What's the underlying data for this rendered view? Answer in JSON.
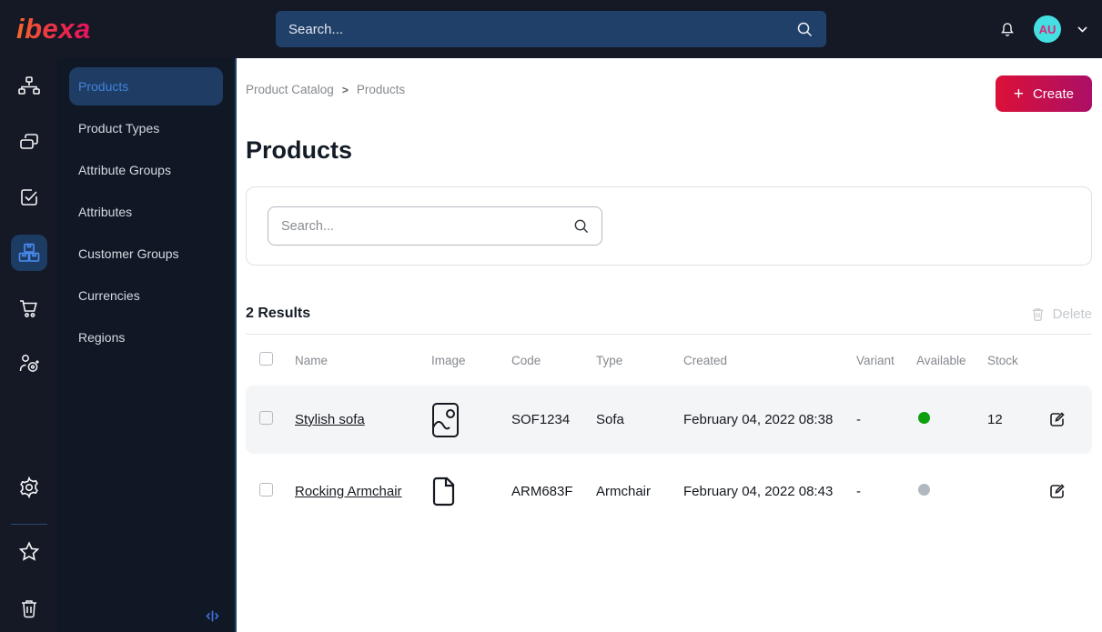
{
  "topbar": {
    "logo_text": "ibexa",
    "search_placeholder": "Search...",
    "avatar_initials": "AU"
  },
  "icon_rail": {
    "items": [
      {
        "name": "content-structure",
        "active": false
      },
      {
        "name": "pages",
        "active": false
      },
      {
        "name": "tasks",
        "active": false
      },
      {
        "name": "product-catalog",
        "active": true
      },
      {
        "name": "commerce",
        "active": false
      },
      {
        "name": "personalization",
        "active": false
      }
    ],
    "bottom_items": [
      "settings",
      "bookmarks",
      "trash"
    ]
  },
  "sidebar": {
    "active": "Products",
    "items": [
      "Products",
      "Product Types",
      "Attribute Groups",
      "Attributes",
      "Customer Groups",
      "Currencies",
      "Regions"
    ]
  },
  "breadcrumb": {
    "items": [
      "Product Catalog",
      "Products"
    ],
    "separator": ">"
  },
  "page": {
    "title": "Products",
    "create_label": "Create",
    "create_plus": "+"
  },
  "filter": {
    "search_placeholder": "Search..."
  },
  "results": {
    "count_label": "2 Results",
    "delete_label": "Delete",
    "columns": [
      "Name",
      "Image",
      "Code",
      "Type",
      "Created",
      "Variant",
      "Available",
      "Stock"
    ],
    "rows": [
      {
        "name": "Stylish sofa",
        "image": "image-icon",
        "code": "SOF1234",
        "type": "Sofa",
        "created": "February 04, 2022 08:38",
        "variant": "-",
        "available": true,
        "stock": "12"
      },
      {
        "name": "Rocking Armchair",
        "image": "file-icon",
        "code": "ARM683F",
        "type": "Armchair",
        "created": "February 04, 2022 08:43",
        "variant": "-",
        "available": false,
        "stock": ""
      }
    ]
  },
  "colors": {
    "topbar_bg": "#141925",
    "subnav_bg": "#101725",
    "active_pill": "#1e3c64",
    "active_text": "#4285db",
    "accent_gradient_start": "#db1038",
    "accent_gradient_end": "#ac0f66",
    "logo_gradient_start": "#f3682a",
    "logo_gradient_end": "#e8125f",
    "avatar_bg": "#43dfe2",
    "avatar_text": "#dd2579",
    "available": "#0ea00e",
    "unavailable": "#b2b8bf",
    "row_shaded": "#f4f5f7"
  }
}
